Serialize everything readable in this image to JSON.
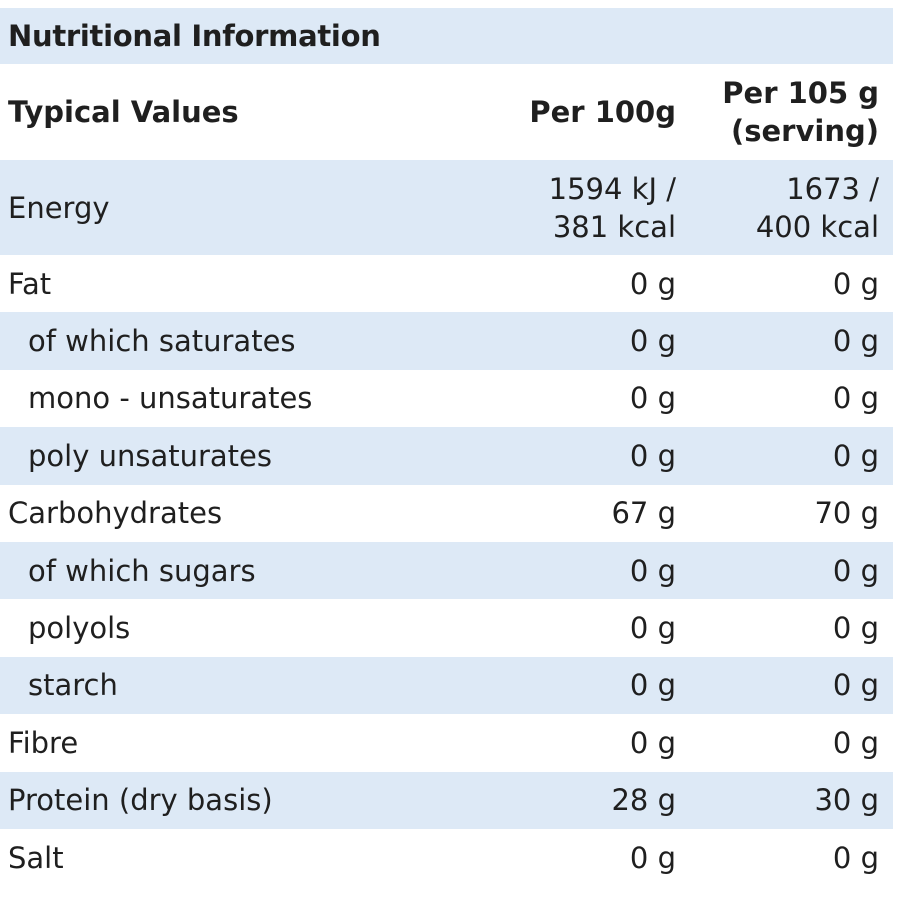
{
  "title": "Nutritional Information",
  "header": {
    "col1": "Typical Values",
    "col2": "Per 100g",
    "col3_line1": "Per 105 g",
    "col3_line2": "(serving)"
  },
  "energy": {
    "label": "Energy",
    "v1_line1": "1594 kJ /",
    "v1_line2": "381 kcal",
    "v2_line1": "1673 /",
    "v2_line2": "400 kcal"
  },
  "rows": [
    {
      "label": "Fat",
      "v1": "0 g",
      "v2": "0 g"
    },
    {
      "label": "of which saturates",
      "v1": "0 g",
      "v2": "0 g"
    },
    {
      "label": "mono - unsaturates",
      "v1": "0 g",
      "v2": "0 g"
    },
    {
      "label": "poly unsaturates",
      "v1": "0 g",
      "v2": "0 g"
    },
    {
      "label": "Carbohydrates",
      "v1": "67 g",
      "v2": "70 g"
    },
    {
      "label": "of which sugars",
      "v1": "0 g",
      "v2": "0 g"
    },
    {
      "label": "polyols",
      "v1": "0 g",
      "v2": "0 g"
    },
    {
      "label": "starch",
      "v1": "0 g",
      "v2": "0 g"
    },
    {
      "label": "Fibre",
      "v1": "0 g",
      "v2": "0 g"
    },
    {
      "label": "Protein (dry basis)",
      "v1": "28 g",
      "v2": "30 g"
    },
    {
      "label": "Salt",
      "v1": "0 g",
      "v2": "0 g"
    }
  ],
  "colors": {
    "shaded_row": "#dde9f6",
    "plain_row": "#ffffff",
    "text": "#1f1f1f"
  }
}
